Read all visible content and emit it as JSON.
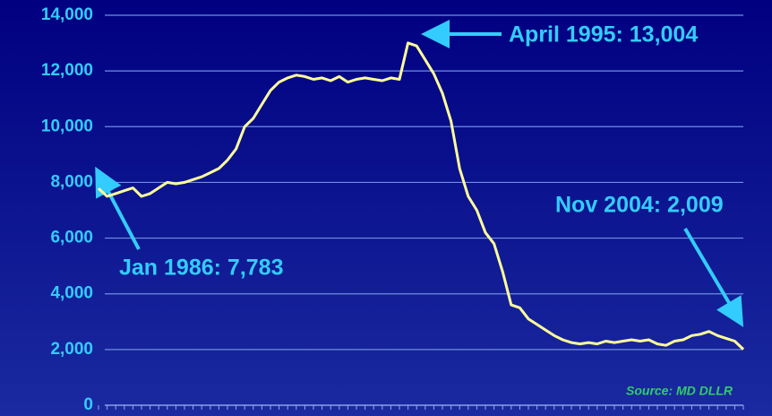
{
  "chart_data": {
    "type": "line",
    "categories": [
      null,
      null,
      null,
      null,
      null,
      null,
      null,
      null,
      null,
      null,
      null,
      null,
      null,
      null,
      null,
      null,
      null,
      null,
      null,
      null,
      null,
      null,
      null,
      null,
      null,
      null,
      null,
      null,
      null,
      null,
      null,
      null,
      null,
      null,
      null,
      null,
      null,
      null,
      null,
      null,
      null,
      null,
      null,
      null,
      null,
      null,
      null,
      null,
      null,
      null,
      null,
      null,
      null,
      null,
      null,
      null,
      null,
      null,
      null,
      null,
      null,
      null,
      null,
      null,
      null,
      null,
      null,
      null,
      null,
      null,
      null,
      null,
      null,
      null,
      null,
      null
    ],
    "series": [
      {
        "color": "#ffff99",
        "values": [
          7783,
          7500,
          7600,
          7700,
          7800,
          7500,
          7600,
          7800,
          8000,
          7950,
          8000,
          8100,
          8200,
          8350,
          8500,
          8800,
          9200,
          10000,
          10300,
          10800,
          11300,
          11600,
          11750,
          11850,
          11800,
          11700,
          11750,
          11650,
          11800,
          11600,
          11700,
          11750,
          11700,
          11650,
          11750,
          11700,
          13004,
          12900,
          12400,
          11900,
          11200,
          10200,
          8500,
          7500,
          7000,
          6200,
          5800,
          4800,
          3600,
          3500,
          3100,
          2900,
          2700,
          2500,
          2350,
          2250,
          2200,
          2250,
          2200,
          2300,
          2250,
          2300,
          2350,
          2300,
          2350,
          2200,
          2150,
          2300,
          2350,
          2500,
          2550,
          2650,
          2500,
          2400,
          2300,
          2009
        ]
      }
    ],
    "ylim": [
      0,
      14000
    ],
    "yticks": [
      0,
      {
        "value": 2000,
        "label": "2,000"
      },
      {
        "value": 4000,
        "label": "4,000"
      },
      {
        "value": 6000,
        "label": "6,000"
      },
      {
        "value": 8000,
        "label": "8,000"
      },
      {
        "value": 10000,
        "label": "10,000"
      },
      {
        "value": 12000,
        "label": "12,000"
      },
      {
        "value": 14000,
        "label": "14,000"
      }
    ],
    "grid": true,
    "annotations": [
      "Jan 1986: 7,783",
      "April 1995: 13,004",
      "Nov 2004: 2,009",
      "Source: MD DLLR"
    ]
  }
}
